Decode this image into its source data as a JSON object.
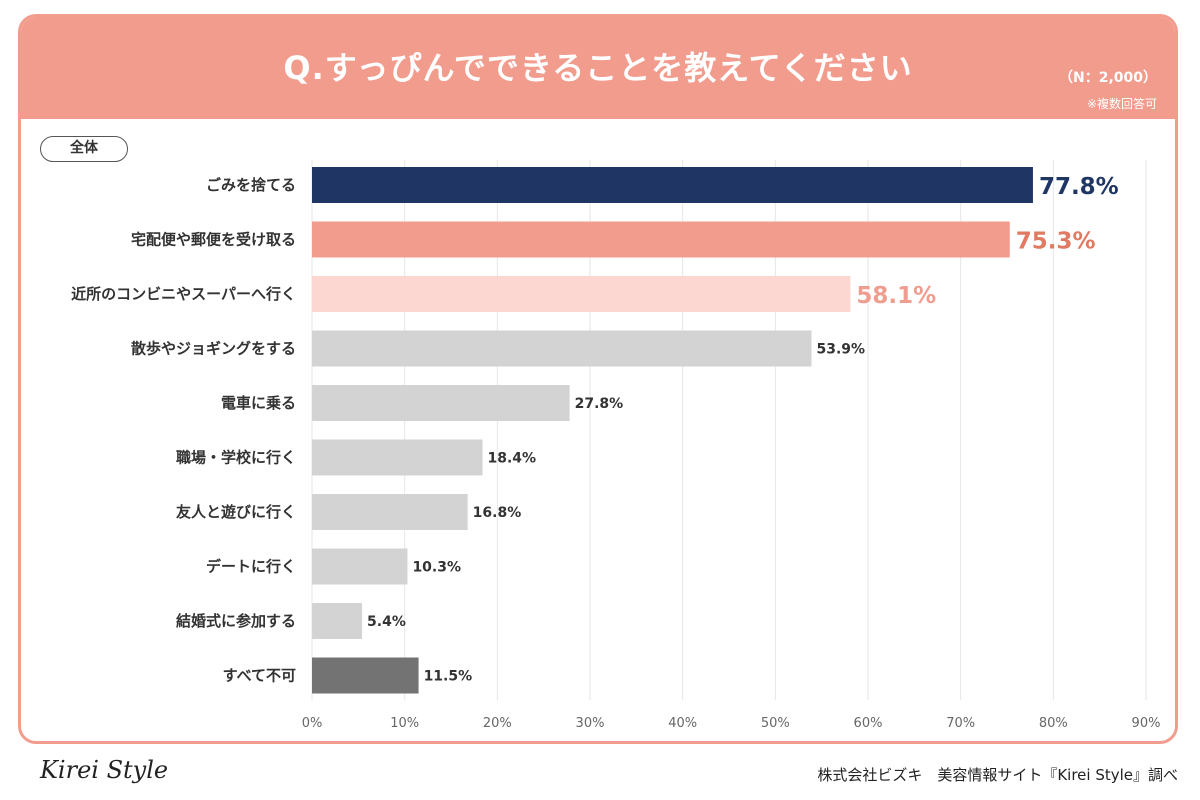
{
  "header": {
    "title": "Q.すっぴんでできることを教えてください",
    "sample_size": "（N：2,000）",
    "note": "※複数回答可"
  },
  "segment_label": "全体",
  "footer": {
    "logo_text": "Kirei Style",
    "credit": "株式会社ビズキ　美容情報サイト『Kirei Style』調べ"
  },
  "colors": {
    "header": "#f29c8e",
    "rank1": "#1f3563",
    "rank2": "#f29c8e",
    "rank2_label": "#e07a62",
    "rank3": "#fcd6d0",
    "rank3_label": "#ef9d8f",
    "other": "#d3d3d3",
    "none": "#737373"
  },
  "chart_data": {
    "type": "bar",
    "orientation": "horizontal",
    "categories": [
      "ごみを捨てる",
      "宅配便や郵便を受け取る",
      "近所のコンビニやスーパーへ行く",
      "散歩やジョギングをする",
      "電車に乗る",
      "職場・学校に行く",
      "友人と遊びに行く",
      "デートに行く",
      "結婚式に参加する",
      "すべて不可"
    ],
    "values": [
      77.8,
      75.3,
      58.1,
      53.9,
      27.8,
      18.4,
      16.8,
      10.3,
      5.4,
      11.5
    ],
    "value_labels": [
      "77.8%",
      "75.3%",
      "58.1%",
      "53.9%",
      "27.8%",
      "18.4%",
      "16.8%",
      "10.3%",
      "5.4%",
      "11.5%"
    ],
    "bar_colors": [
      "#1f3563",
      "#f29c8e",
      "#fcd6d0",
      "#d3d3d3",
      "#d3d3d3",
      "#d3d3d3",
      "#d3d3d3",
      "#d3d3d3",
      "#d3d3d3",
      "#737373"
    ],
    "label_colors": [
      "#1f3563",
      "#e07a62",
      "#ef9d8f",
      "#333333",
      "#333333",
      "#333333",
      "#333333",
      "#333333",
      "#333333",
      "#333333"
    ],
    "x_ticks": [
      "0%",
      "10%",
      "20%",
      "30%",
      "40%",
      "50%",
      "60%",
      "70%",
      "80%",
      "90%"
    ],
    "xlim": [
      0,
      90
    ],
    "grid": true,
    "title": "Q.すっぴんでできることを教えてください",
    "xlabel": "",
    "ylabel": ""
  }
}
